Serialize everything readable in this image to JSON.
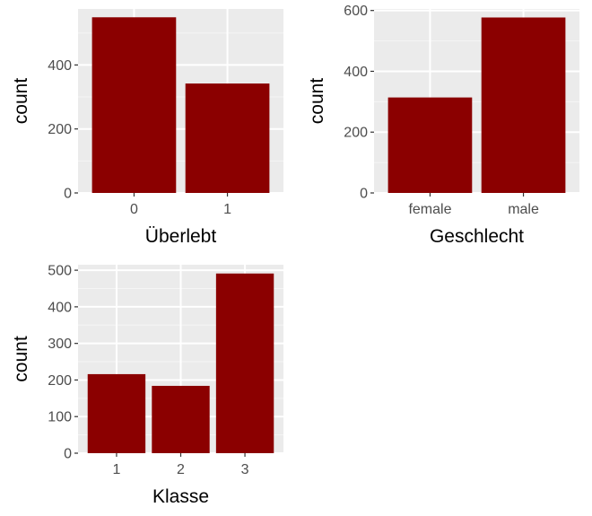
{
  "style": {
    "bar_color": "#8b0000",
    "panel_bg": "#ebebeb",
    "grid_major": "#ffffff",
    "grid_minor": "#f5f5f5",
    "tick_color": "#333333"
  },
  "chart_data": [
    {
      "type": "bar",
      "categories": [
        "0",
        "1"
      ],
      "values": [
        549,
        342
      ],
      "xlabel": "Überlebt",
      "ylabel": "count",
      "ylim": [
        0,
        575
      ],
      "yticks": [
        0,
        200,
        400
      ],
      "grid": true
    },
    {
      "type": "bar",
      "categories": [
        "female",
        "male"
      ],
      "values": [
        314,
        577
      ],
      "xlabel": "Geschlecht",
      "ylabel": "count",
      "ylim": [
        0,
        605
      ],
      "yticks": [
        0,
        200,
        400,
        600
      ],
      "grid": true
    },
    {
      "type": "bar",
      "categories": [
        "1",
        "2",
        "3"
      ],
      "values": [
        216,
        184,
        491
      ],
      "xlabel": "Klasse",
      "ylabel": "count",
      "ylim": [
        0,
        515
      ],
      "yticks": [
        0,
        100,
        200,
        300,
        400,
        500
      ],
      "grid": true
    }
  ]
}
